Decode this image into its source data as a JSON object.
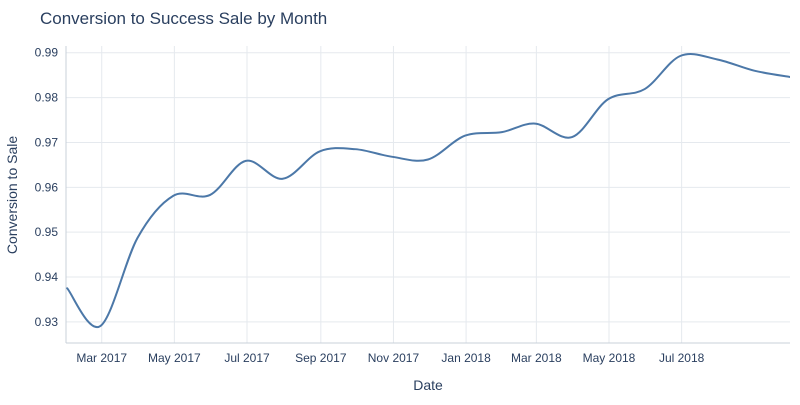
{
  "chart_data": {
    "type": "line",
    "title": "Conversion to Success Sale by Month",
    "xlabel": "Date",
    "ylabel": "Conversion to Sale",
    "x_tick_labels": [
      "Mar 2017",
      "May 2017",
      "Jul 2017",
      "Sep 2017",
      "Nov 2017",
      "Jan 2018",
      "Mar 2018",
      "May 2018",
      "Jul 2018"
    ],
    "x_tick_dates": [
      "2017-03-01",
      "2017-05-01",
      "2017-07-01",
      "2017-09-01",
      "2017-11-01",
      "2018-01-01",
      "2018-03-01",
      "2018-05-01",
      "2018-07-01"
    ],
    "x_range": [
      "2017-01-30",
      "2018-09-30"
    ],
    "y_tick_labels": [
      "0.93",
      "0.94",
      "0.95",
      "0.96",
      "0.97",
      "0.98",
      "0.99"
    ],
    "y_ticks": [
      0.93,
      0.94,
      0.95,
      0.96,
      0.97,
      0.98,
      0.99
    ],
    "ylim": [
      0.9253,
      0.9915
    ],
    "grid": true,
    "line_shape": "spline",
    "color": "#4c78a8",
    "series": [
      {
        "x": [
          "2017-01-31",
          "2017-02-28",
          "2017-03-31",
          "2017-04-30",
          "2017-05-31",
          "2017-06-30",
          "2017-07-31",
          "2017-08-31",
          "2017-09-30",
          "2017-10-31",
          "2017-11-30",
          "2017-12-31",
          "2018-01-31",
          "2018-02-28",
          "2018-03-31",
          "2018-04-30",
          "2018-05-31",
          "2018-06-30",
          "2018-07-31",
          "2018-08-31",
          "2018-09-30"
        ],
        "values": [
          0.9375,
          0.9291,
          0.9487,
          0.9581,
          0.9583,
          0.9659,
          0.9619,
          0.968,
          0.9685,
          0.9668,
          0.9662,
          0.9715,
          0.9723,
          0.9742,
          0.9712,
          0.9796,
          0.9819,
          0.9893,
          0.9885,
          0.986,
          0.9846
        ]
      }
    ]
  }
}
